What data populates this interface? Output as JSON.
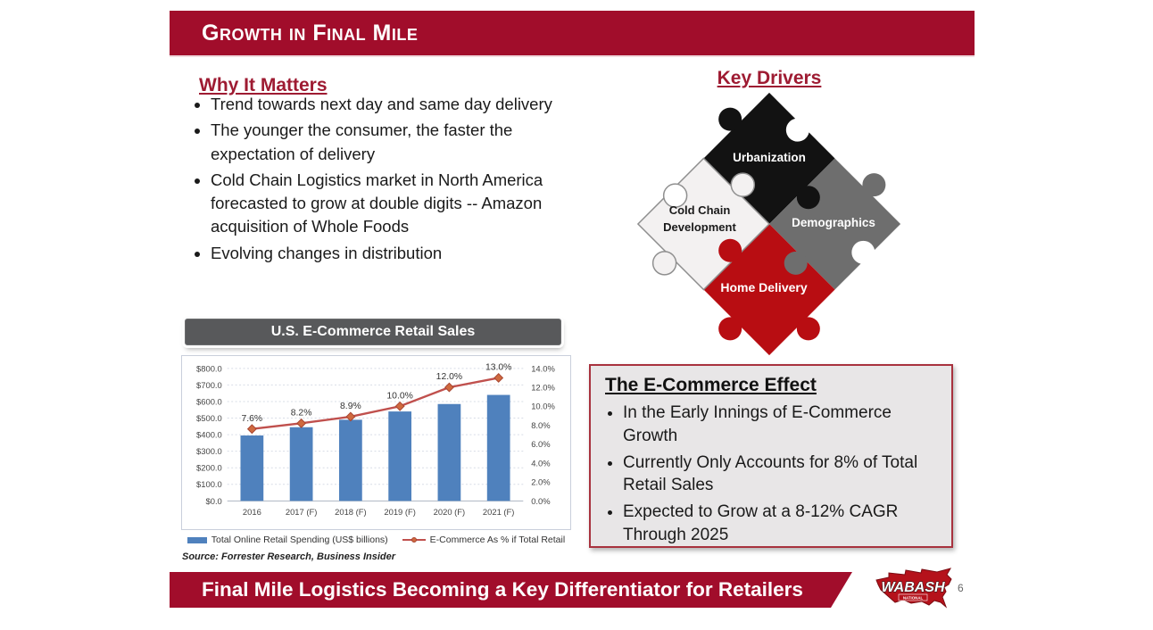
{
  "colors": {
    "accent": "#A10D2B",
    "heading": "#9E1B32",
    "chart_header_bg": "#58595B",
    "bar_blue": "#4F81BD",
    "line_red": "#C0504D",
    "box_bg": "#E8E6E7",
    "box_border": "#A8323E"
  },
  "slide": {
    "title": "Growth in Final Mile",
    "footer_banner": "Final Mile Logistics Becoming a Key Differentiator for Retailers",
    "page_number": "6",
    "logo": {
      "brand": "WABASH",
      "sub": "NATIONAL"
    }
  },
  "why_it_matters": {
    "heading": "Why It Matters",
    "bullets": [
      "Trend towards next day and same day delivery",
      "The younger the consumer, the faster the expectation of delivery",
      "Cold Chain Logistics market in North America forecasted to grow at double digits -- Amazon acquisition of Whole Foods",
      "Evolving changes in distribution"
    ]
  },
  "key_drivers": {
    "heading": "Key Drivers",
    "pieces": [
      {
        "label": "Urbanization",
        "color": "#121212",
        "text_color": "#ffffff"
      },
      {
        "label": "Cold Chain Development",
        "color": "#F3F1F1",
        "text_color": "#1a1a1a"
      },
      {
        "label": "Demographics",
        "color": "#6E6E6E",
        "text_color": "#ffffff"
      },
      {
        "label": "Home Delivery",
        "color": "#B80D12",
        "text_color": "#ffffff"
      }
    ]
  },
  "ecommerce_effect": {
    "heading": "The E-Commerce Effect",
    "bullets": [
      "In the Early Innings of E-Commerce Growth",
      "Currently Only Accounts for 8% of Total Retail Sales",
      "Expected to Grow at a 8-12% CAGR Through 2025"
    ]
  },
  "chart": {
    "header": "U.S. E-Commerce Retail Sales",
    "source": "Source: Forrester Research, Business Insider"
  },
  "chart_data": {
    "type": "bar",
    "title": "U.S. E-Commerce Retail Sales",
    "categories": [
      "2016",
      "2017 (F)",
      "2018 (F)",
      "2019 (F)",
      "2020 (F)",
      "2021 (F)"
    ],
    "series": [
      {
        "name": "Total Online Retail Spending (US$ billions)",
        "type": "bar",
        "axis": "left",
        "color": "#4F81BD",
        "values": [
          395,
          445,
          490,
          540,
          585,
          640
        ]
      },
      {
        "name": "E-Commerce As % if Total Retail",
        "type": "line",
        "axis": "right",
        "color": "#C0504D",
        "values": [
          7.6,
          8.2,
          8.9,
          10.0,
          12.0,
          13.0
        ],
        "labels": [
          "7.6%",
          "8.2%",
          "8.9%",
          "10.0%",
          "12.0%",
          "13.0%"
        ]
      }
    ],
    "left_axis": {
      "min": 0,
      "max": 800,
      "ticks": [
        "$0.0",
        "$100.0",
        "$200.0",
        "$300.0",
        "$400.0",
        "$500.0",
        "$600.0",
        "$700.0",
        "$800.0"
      ]
    },
    "right_axis": {
      "min": 0,
      "max": 14,
      "ticks": [
        "0.0%",
        "2.0%",
        "4.0%",
        "6.0%",
        "8.0%",
        "10.0%",
        "12.0%",
        "14.0%"
      ]
    },
    "grid": true,
    "legend_position": "bottom"
  }
}
